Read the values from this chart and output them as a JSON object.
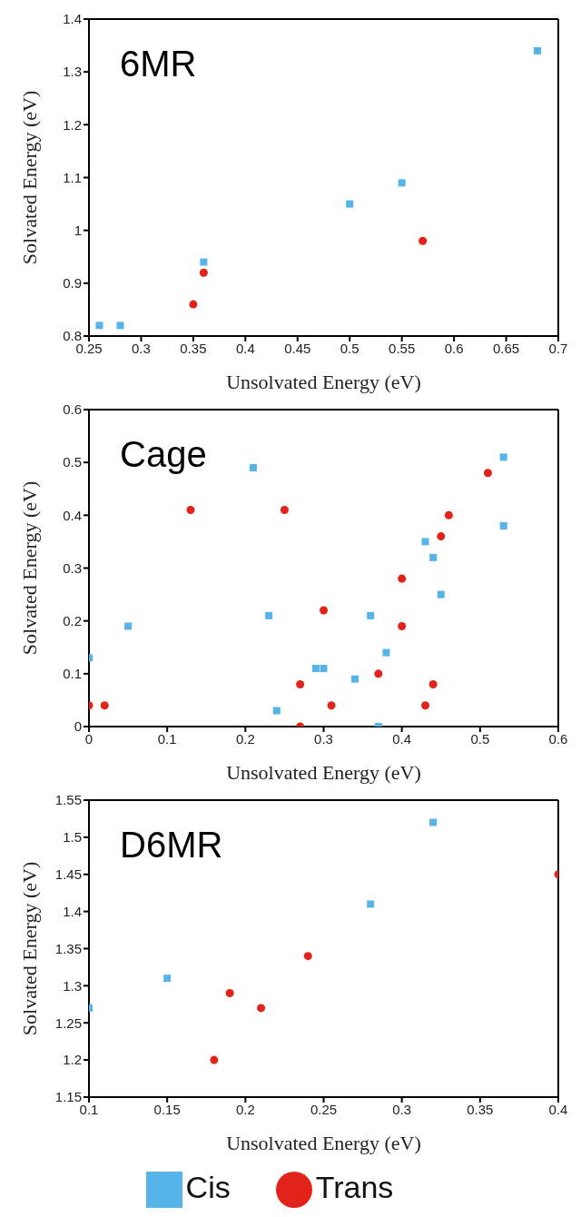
{
  "chart_data": [
    {
      "type": "scatter",
      "xlabel": "Unsolvated Energy (eV)",
      "ylabel": "Solvated Energy (eV)",
      "annotations": [
        "6MR"
      ],
      "xlim": [
        0.25,
        0.7
      ],
      "xticks": [
        0.25,
        0.3,
        0.35,
        0.4,
        0.45,
        0.5,
        0.55,
        0.6,
        0.65,
        0.7
      ],
      "ylim": [
        0.8,
        1.4
      ],
      "yticks": [
        0.8,
        0.9,
        1,
        1.1,
        1.2,
        1.3,
        1.4
      ],
      "grid": false,
      "legend": false,
      "series": [
        {
          "color": "#56b4e9",
          "marker": "square",
          "x": [
            0.26,
            0.28,
            0.36,
            0.5,
            0.55,
            0.68
          ],
          "values": [
            0.82,
            0.82,
            0.94,
            1.05,
            1.09,
            1.34
          ]
        },
        {
          "color": "#e2231a",
          "marker": "circle",
          "x": [
            0.35,
            0.36,
            0.57
          ],
          "values": [
            0.86,
            0.92,
            0.98
          ]
        }
      ]
    },
    {
      "type": "scatter",
      "xlabel": "Unsolvated Energy (eV)",
      "ylabel": "Solvated Energy (eV)",
      "annotations": [
        "Cage"
      ],
      "xlim": [
        0,
        0.6
      ],
      "xticks": [
        0,
        0.1,
        0.2,
        0.3,
        0.4,
        0.5,
        0.6
      ],
      "ylim": [
        0,
        0.6
      ],
      "yticks": [
        0,
        0.1,
        0.2,
        0.3,
        0.4,
        0.5,
        0.6
      ],
      "grid": false,
      "legend": false,
      "series": [
        {
          "color": "#56b4e9",
          "marker": "square",
          "x": [
            0,
            0.05,
            0.21,
            0.23,
            0.24,
            0.29,
            0.3,
            0.34,
            0.36,
            0.37,
            0.38,
            0.43,
            0.44,
            0.45,
            0.53,
            0.53
          ],
          "values": [
            0.13,
            0.19,
            0.49,
            0.21,
            0.03,
            0.11,
            0.11,
            0.09,
            0.21,
            0,
            0.14,
            0.35,
            0.32,
            0.25,
            0.51,
            0.38
          ]
        },
        {
          "color": "#e2231a",
          "marker": "circle",
          "x": [
            0,
            0.02,
            0.13,
            0.25,
            0.27,
            0.27,
            0.3,
            0.31,
            0.37,
            0.4,
            0.4,
            0.43,
            0.44,
            0.45,
            0.46,
            0.51
          ],
          "values": [
            0.04,
            0.04,
            0.41,
            0.41,
            0.08,
            0,
            0.22,
            0.04,
            0.1,
            0.28,
            0.19,
            0.04,
            0.08,
            0.36,
            0.4,
            0.48
          ]
        }
      ]
    },
    {
      "type": "scatter",
      "xlabel": "Unsolvated Energy (eV)",
      "ylabel": "Solvated Energy (eV)",
      "annotations": [
        "D6MR"
      ],
      "xlim": [
        0.1,
        0.4
      ],
      "xticks": [
        0.1,
        0.15,
        0.2,
        0.25,
        0.3,
        0.35,
        0.4
      ],
      "ylim": [
        1.15,
        1.55
      ],
      "yticks": [
        1.15,
        1.2,
        1.25,
        1.3,
        1.35,
        1.4,
        1.45,
        1.5,
        1.55
      ],
      "grid": false,
      "legend": "bottom",
      "series": [
        {
          "name": "Cis",
          "color": "#56b4e9",
          "marker": "square",
          "x": [
            0.1,
            0.15,
            0.28,
            0.32
          ],
          "values": [
            1.27,
            1.31,
            1.41,
            1.52
          ]
        },
        {
          "name": "Trans",
          "color": "#e2231a",
          "marker": "circle",
          "x": [
            0.18,
            0.19,
            0.21,
            0.24,
            0.4
          ],
          "values": [
            1.2,
            1.29,
            1.27,
            1.34,
            1.45
          ]
        }
      ]
    }
  ]
}
